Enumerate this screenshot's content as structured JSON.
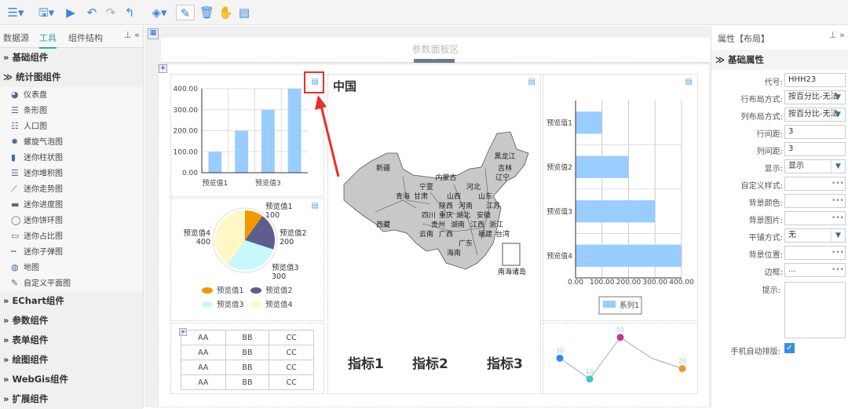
{
  "toolbar": {
    "icons": [
      "menu-icon",
      "save-icon",
      "run-icon",
      "undo-icon",
      "redo-icon",
      "return-icon",
      "fill-icon",
      "pencil-icon",
      "delete-icon",
      "hand-icon",
      "window-icon"
    ]
  },
  "left_panel": {
    "tabs": [
      "数据源",
      "工具",
      "组件结构"
    ],
    "active_tab": "工具",
    "sections": [
      {
        "label": "基础组件",
        "expanded": false
      },
      {
        "label": "统计图组件",
        "expanded": true
      }
    ],
    "chart_items": [
      {
        "label": "仪表盘",
        "icon": "gauge-icon"
      },
      {
        "label": "条形图",
        "icon": "bar-chart-icon"
      },
      {
        "label": "人口图",
        "icon": "population-icon"
      },
      {
        "label": "螺旋气泡图",
        "icon": "bubble-icon"
      },
      {
        "label": "迷你柱状图",
        "icon": "mini-column-icon"
      },
      {
        "label": "迷你堆积图",
        "icon": "mini-stack-icon"
      },
      {
        "label": "迷你走势图",
        "icon": "mini-trend-icon"
      },
      {
        "label": "迷你进度图",
        "icon": "mini-progress-icon"
      },
      {
        "label": "迷你饼环图",
        "icon": "mini-ring-icon"
      },
      {
        "label": "迷你占比图",
        "icon": "mini-ratio-icon"
      },
      {
        "label": "迷你子弹图",
        "icon": "mini-bullet-icon"
      },
      {
        "label": "地图",
        "icon": "globe-icon"
      },
      {
        "label": "自定义平面图",
        "icon": "pen-icon"
      }
    ],
    "more_sections": [
      "EChart组件",
      "参数组件",
      "表单组件",
      "绘图组件",
      "WebGis组件",
      "扩展组件"
    ]
  },
  "canvas": {
    "param_area": "参数面板区",
    "map": {
      "title": "中国",
      "provinces": [
        "新疆",
        "西藏",
        "青海",
        "甘肃",
        "宁夏",
        "内蒙古",
        "黑龙江",
        "吉林",
        "辽宁",
        "河北",
        "山西",
        "山东",
        "陕西",
        "河南",
        "江苏",
        "安徽",
        "四川",
        "重庆",
        "湖北",
        "湖南",
        "江西",
        "浙江",
        "贵州",
        "云南",
        "福建",
        "广西",
        "广东",
        "台湾",
        "海南",
        "南海诸岛"
      ]
    },
    "kpis": [
      "指标1",
      "指标2",
      "指标3"
    ],
    "table": [
      [
        "AA",
        "BB",
        "CC"
      ],
      [
        "AA",
        "BB",
        "CC"
      ],
      [
        "AA",
        "BB",
        "CC"
      ],
      [
        "AA",
        "BB",
        "CC"
      ]
    ]
  },
  "chart_data": [
    {
      "type": "bar",
      "categories": [
        "预览值1",
        "预览值2",
        "预览值3",
        "预览值4"
      ],
      "visible_tick_labels": [
        "预览值1",
        "预览值3"
      ],
      "values": [
        100,
        200,
        300,
        400
      ],
      "ylim": [
        0,
        400
      ],
      "yticks": [
        "0.00",
        "100.00",
        "200.00",
        "300.00",
        "400.00"
      ],
      "grid": true,
      "color": "#99ccff"
    },
    {
      "type": "pie",
      "categories": [
        "预览值1",
        "预览值2",
        "预览值3",
        "预览值4"
      ],
      "values": [
        100,
        200,
        300,
        400
      ],
      "colors": [
        "#f39800",
        "#5c5f8e",
        "#c8f8fc",
        "#fff7c4"
      ],
      "legend": "bottom"
    },
    {
      "type": "bar",
      "orientation": "horizontal",
      "categories": [
        "预览值1",
        "预览值2",
        "预览值3",
        "预览值4"
      ],
      "values": [
        100,
        200,
        300,
        400
      ],
      "xlim": [
        0,
        400
      ],
      "xticks": [
        "0.00",
        "100.00",
        "200.00",
        "300.00",
        "400.00"
      ],
      "series_name": "系列1",
      "legend": "bottom",
      "grid": true,
      "color": "#99ccff"
    },
    {
      "type": "line",
      "values": [
        30,
        10,
        50,
        30,
        20
      ],
      "labels": [
        "30",
        "10",
        "50",
        "",
        "20"
      ],
      "point_colors": [
        "#1e90ff",
        "#33cccc",
        "#cc3399",
        "",
        "#f0932b"
      ]
    }
  ],
  "right_panel": {
    "title": "属性【布局】",
    "section": "基础属性",
    "props": [
      {
        "label": "代号:",
        "value": "HHH23",
        "type": "text"
      },
      {
        "label": "行布局方式:",
        "value": "按百分比-无法",
        "type": "select"
      },
      {
        "label": "列布局方式:",
        "value": "按百分比-无法",
        "type": "select"
      },
      {
        "label": "行间距:",
        "value": "3",
        "type": "text"
      },
      {
        "label": "列间距:",
        "value": "3",
        "type": "text"
      },
      {
        "label": "显示:",
        "value": "显示",
        "type": "select"
      },
      {
        "label": "自定义样式:",
        "value": "",
        "type": "dots"
      },
      {
        "label": "背景颜色:",
        "value": "",
        "type": "dots"
      },
      {
        "label": "背景图片:",
        "value": "",
        "type": "dots"
      },
      {
        "label": "平铺方式:",
        "value": "无",
        "type": "select"
      },
      {
        "label": "背景位置:",
        "value": "",
        "type": "dots"
      },
      {
        "label": "边框:",
        "value": "...",
        "type": "dots"
      }
    ],
    "hint_label": "提示:",
    "mobile_label": "手机自动排版:",
    "mobile_checked": true
  },
  "annotation_color": "#e8302a"
}
